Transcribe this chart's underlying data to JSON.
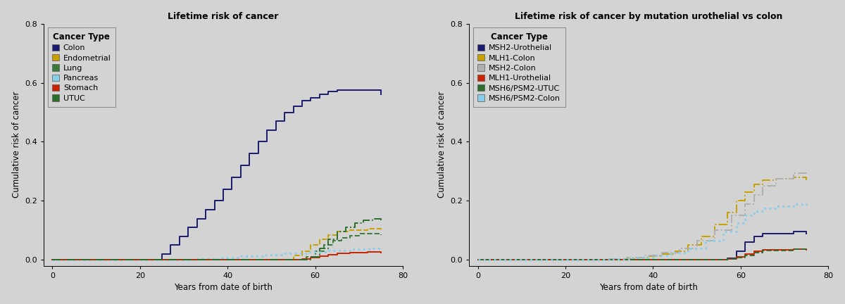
{
  "fig_width": 12.0,
  "fig_height": 4.32,
  "bg_color": "#d3d3d3",
  "left_title": "Lifetime risk of cancer",
  "left_xlabel": "Years from date of birth",
  "left_ylabel": "Cumulative risk of cancer",
  "left_ylim": [
    -0.02,
    0.8
  ],
  "left_xlim": [
    -2,
    80
  ],
  "left_yticks": [
    0.0,
    0.2,
    0.4,
    0.6,
    0.8
  ],
  "left_xticks": [
    0,
    20,
    40,
    60,
    80
  ],
  "left_series": [
    {
      "label": "Colon",
      "color": "#1a1a6e",
      "linestyle": "solid",
      "linewidth": 1.4,
      "x": [
        0,
        25,
        25,
        27,
        27,
        29,
        29,
        31,
        31,
        33,
        33,
        35,
        35,
        37,
        37,
        39,
        39,
        41,
        41,
        43,
        43,
        45,
        45,
        47,
        47,
        49,
        49,
        51,
        51,
        53,
        53,
        55,
        55,
        57,
        57,
        59,
        59,
        61,
        61,
        63,
        63,
        65,
        65,
        75,
        75
      ],
      "y": [
        0.0,
        0.0,
        0.02,
        0.02,
        0.05,
        0.05,
        0.08,
        0.08,
        0.11,
        0.11,
        0.14,
        0.14,
        0.17,
        0.17,
        0.2,
        0.2,
        0.24,
        0.24,
        0.28,
        0.28,
        0.32,
        0.32,
        0.36,
        0.36,
        0.4,
        0.4,
        0.44,
        0.44,
        0.47,
        0.47,
        0.5,
        0.5,
        0.52,
        0.52,
        0.54,
        0.54,
        0.55,
        0.55,
        0.56,
        0.56,
        0.57,
        0.57,
        0.575,
        0.575,
        0.56
      ]
    },
    {
      "label": "Endometrial",
      "color": "#c8a000",
      "linestyle": "dashed",
      "linewidth": 1.4,
      "x": [
        0,
        55,
        55,
        57,
        57,
        59,
        59,
        61,
        61,
        63,
        63,
        65,
        65,
        68,
        68,
        72,
        72,
        75,
        75
      ],
      "y": [
        0.0,
        0.0,
        0.015,
        0.015,
        0.03,
        0.03,
        0.05,
        0.05,
        0.07,
        0.07,
        0.085,
        0.085,
        0.095,
        0.095,
        0.1,
        0.1,
        0.105,
        0.105,
        0.1
      ]
    },
    {
      "label": "Lung",
      "color": "#3a7a3a",
      "linestyle": "dashed",
      "linewidth": 1.4,
      "x": [
        0,
        58,
        58,
        60,
        60,
        62,
        62,
        64,
        64,
        66,
        66,
        68,
        68,
        70,
        70,
        72,
        72,
        75,
        75
      ],
      "y": [
        0.0,
        0.0,
        0.01,
        0.01,
        0.03,
        0.03,
        0.05,
        0.05,
        0.065,
        0.065,
        0.075,
        0.075,
        0.082,
        0.082,
        0.088,
        0.088,
        0.09,
        0.09,
        0.085
      ]
    },
    {
      "label": "Pancreas",
      "color": "#87CEEB",
      "linestyle": "dotted",
      "linewidth": 2.0,
      "x": [
        0,
        33,
        33,
        38,
        38,
        43,
        43,
        48,
        48,
        53,
        53,
        58,
        58,
        63,
        63,
        68,
        68,
        73,
        73,
        75,
        75
      ],
      "y": [
        0.0,
        0.0,
        0.004,
        0.004,
        0.008,
        0.008,
        0.013,
        0.013,
        0.018,
        0.018,
        0.023,
        0.023,
        0.028,
        0.028,
        0.033,
        0.033,
        0.037,
        0.037,
        0.04,
        0.04,
        0.04
      ]
    },
    {
      "label": "Stomach",
      "color": "#cc2200",
      "linestyle": "solid",
      "linewidth": 1.4,
      "x": [
        0,
        57,
        57,
        59,
        59,
        61,
        61,
        63,
        63,
        65,
        65,
        68,
        68,
        72,
        72,
        75,
        75
      ],
      "y": [
        0.0,
        0.0,
        0.003,
        0.003,
        0.008,
        0.008,
        0.013,
        0.013,
        0.018,
        0.018,
        0.022,
        0.022,
        0.025,
        0.025,
        0.027,
        0.027,
        0.025
      ]
    },
    {
      "label": "UTUC",
      "color": "#2d6e2d",
      "linestyle": "dashdot",
      "linewidth": 1.4,
      "x": [
        0,
        59,
        59,
        61,
        61,
        63,
        63,
        65,
        65,
        67,
        67,
        69,
        69,
        71,
        71,
        73,
        73,
        75,
        75
      ],
      "y": [
        0.0,
        0.0,
        0.01,
        0.01,
        0.04,
        0.04,
        0.07,
        0.07,
        0.095,
        0.095,
        0.11,
        0.11,
        0.125,
        0.125,
        0.135,
        0.135,
        0.14,
        0.14,
        0.135
      ]
    }
  ],
  "right_title": "Lifetime risk of cancer by mutation urothelial vs colon",
  "right_xlabel": "Years from date of birth",
  "right_ylabel": "Cumulative risk of cancer",
  "right_ylim": [
    -0.02,
    0.8
  ],
  "right_xlim": [
    -2,
    80
  ],
  "right_yticks": [
    0.0,
    0.2,
    0.4,
    0.6,
    0.8
  ],
  "right_xticks": [
    0,
    20,
    40,
    60,
    80
  ],
  "right_series": [
    {
      "label": "MSH2-Urothelial",
      "color": "#1a1a6e",
      "linestyle": "solid",
      "linewidth": 1.4,
      "x": [
        0,
        57,
        57,
        59,
        59,
        61,
        61,
        63,
        63,
        65,
        65,
        72,
        72,
        75,
        75
      ],
      "y": [
        0.0,
        0.0,
        0.005,
        0.005,
        0.03,
        0.03,
        0.06,
        0.06,
        0.08,
        0.08,
        0.09,
        0.09,
        0.095,
        0.095,
        0.09
      ]
    },
    {
      "label": "MLH1-Colon",
      "color": "#c8a000",
      "linestyle": "dashdot",
      "linewidth": 1.4,
      "x": [
        0,
        32,
        32,
        36,
        36,
        39,
        39,
        42,
        42,
        45,
        45,
        48,
        48,
        51,
        51,
        54,
        54,
        57,
        57,
        59,
        59,
        61,
        61,
        63,
        63,
        65,
        65,
        68,
        68,
        72,
        72,
        75,
        75
      ],
      "y": [
        0.0,
        0.0,
        0.003,
        0.003,
        0.007,
        0.007,
        0.012,
        0.012,
        0.02,
        0.02,
        0.03,
        0.03,
        0.05,
        0.05,
        0.08,
        0.08,
        0.12,
        0.12,
        0.16,
        0.16,
        0.2,
        0.2,
        0.23,
        0.23,
        0.255,
        0.255,
        0.27,
        0.27,
        0.275,
        0.275,
        0.28,
        0.28,
        0.27
      ]
    },
    {
      "label": "MSH2-Colon",
      "color": "#b0b0b0",
      "linestyle": "dashdot",
      "linewidth": 1.4,
      "x": [
        0,
        30,
        30,
        34,
        34,
        38,
        38,
        42,
        42,
        46,
        46,
        50,
        50,
        54,
        54,
        58,
        58,
        61,
        61,
        63,
        63,
        65,
        65,
        68,
        68,
        72,
        72,
        75,
        75
      ],
      "y": [
        0.0,
        0.0,
        0.003,
        0.003,
        0.007,
        0.007,
        0.014,
        0.014,
        0.025,
        0.025,
        0.04,
        0.04,
        0.065,
        0.065,
        0.1,
        0.1,
        0.15,
        0.15,
        0.19,
        0.19,
        0.22,
        0.22,
        0.25,
        0.25,
        0.275,
        0.275,
        0.295,
        0.295,
        0.3
      ]
    },
    {
      "label": "MLH1-Urothelial",
      "color": "#cc2200",
      "linestyle": "solid",
      "linewidth": 1.4,
      "x": [
        0,
        57,
        57,
        59,
        59,
        61,
        61,
        63,
        63,
        65,
        65,
        72,
        72,
        75,
        75
      ],
      "y": [
        0.0,
        0.0,
        0.003,
        0.003,
        0.01,
        0.01,
        0.02,
        0.02,
        0.03,
        0.03,
        0.035,
        0.035,
        0.037,
        0.037,
        0.035
      ]
    },
    {
      "label": "MSH6/PSM2-UTUC",
      "color": "#2d6e2d",
      "linestyle": "dashed",
      "linewidth": 1.4,
      "x": [
        0,
        57,
        57,
        59,
        59,
        61,
        61,
        63,
        63,
        65,
        65,
        72,
        72,
        75,
        75
      ],
      "y": [
        0.0,
        0.0,
        0.003,
        0.003,
        0.008,
        0.008,
        0.015,
        0.015,
        0.025,
        0.025,
        0.032,
        0.032,
        0.036,
        0.036,
        0.033
      ]
    },
    {
      "label": "MSH6/PSM2-Colon",
      "color": "#87CEEB",
      "linestyle": "dotted",
      "linewidth": 2.0,
      "x": [
        0,
        30,
        30,
        35,
        35,
        40,
        40,
        44,
        44,
        48,
        48,
        52,
        52,
        56,
        56,
        59,
        59,
        61,
        61,
        63,
        63,
        65,
        65,
        68,
        68,
        72,
        72,
        75,
        75
      ],
      "y": [
        0.0,
        0.0,
        0.003,
        0.003,
        0.007,
        0.007,
        0.015,
        0.015,
        0.025,
        0.025,
        0.04,
        0.04,
        0.065,
        0.065,
        0.095,
        0.095,
        0.125,
        0.125,
        0.15,
        0.15,
        0.165,
        0.165,
        0.175,
        0.175,
        0.183,
        0.183,
        0.188,
        0.188,
        0.185
      ]
    }
  ]
}
